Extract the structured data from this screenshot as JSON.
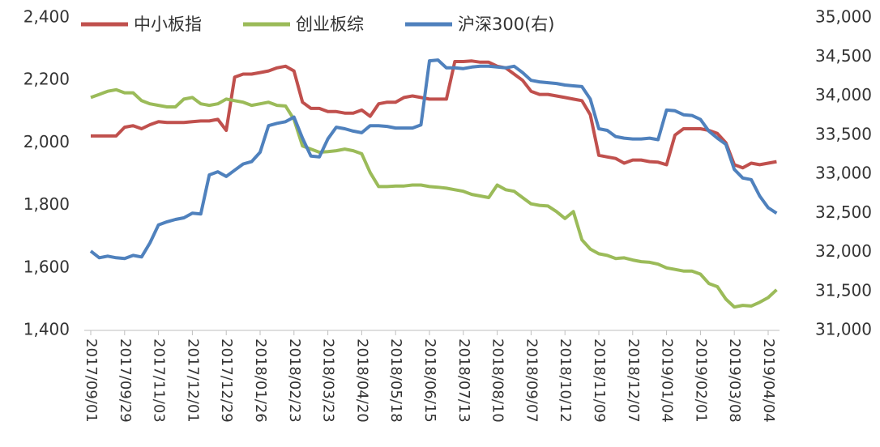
{
  "chart_data": {
    "type": "line",
    "categories": [
      "2017/09/01",
      null,
      null,
      null,
      "2017/09/29",
      null,
      null,
      null,
      "2017/11/03",
      null,
      null,
      null,
      "2017/12/01",
      null,
      null,
      null,
      "2017/12/29",
      null,
      null,
      null,
      "2018/01/26",
      null,
      null,
      null,
      "2018/02/23",
      null,
      null,
      null,
      "2018/03/23",
      null,
      null,
      null,
      "2018/04/20",
      null,
      null,
      null,
      "2018/05/18",
      null,
      null,
      null,
      "2018/06/15",
      null,
      null,
      null,
      "2018/07/13",
      null,
      null,
      null,
      "2018/08/10",
      null,
      null,
      null,
      "2018/09/07",
      null,
      null,
      null,
      "2018/10/12",
      null,
      null,
      null,
      "2018/11/09",
      null,
      null,
      null,
      "2018/12/07",
      null,
      null,
      null,
      "2019/01/04",
      null,
      null,
      null,
      "2019/02/01",
      null,
      null,
      null,
      "2019/03/08",
      null,
      null,
      null,
      "2019/04/04",
      null
    ],
    "series": [
      {
        "name": "中小板指",
        "color": "#c0504d",
        "values": [
          2022,
          2022,
          2022,
          2022,
          2050,
          2055,
          2045,
          2058,
          2068,
          2065,
          2065,
          2065,
          2068,
          2070,
          2070,
          2075,
          2040,
          2210,
          2220,
          2220,
          2225,
          2230,
          2240,
          2245,
          2230,
          2130,
          2110,
          2110,
          2100,
          2100,
          2095,
          2095,
          2105,
          2085,
          2125,
          2130,
          2130,
          2145,
          2150,
          2145,
          2140,
          2140,
          2140,
          2260,
          2260,
          2262,
          2258,
          2258,
          2245,
          2240,
          2220,
          2200,
          2165,
          2155,
          2155,
          2150,
          2145,
          2140,
          2135,
          2090,
          1960,
          1955,
          1950,
          1935,
          1945,
          1945,
          1940,
          1938,
          1930,
          2025,
          2045,
          2045,
          2045,
          2040,
          2030,
          2000,
          1930,
          1920,
          1935,
          1930,
          1935,
          1940
        ]
      },
      {
        "name": "创业板综",
        "color": "#9bbb59",
        "values": [
          2145,
          2155,
          2165,
          2170,
          2160,
          2160,
          2135,
          2125,
          2120,
          2115,
          2115,
          2140,
          2145,
          2125,
          2120,
          2125,
          2140,
          2135,
          2130,
          2120,
          2125,
          2130,
          2120,
          2118,
          2075,
          1990,
          1980,
          1970,
          1972,
          1975,
          1980,
          1975,
          1965,
          1905,
          1860,
          1860,
          1862,
          1862,
          1865,
          1865,
          1860,
          1858,
          1855,
          1850,
          1845,
          1835,
          1830,
          1825,
          1865,
          1850,
          1845,
          1825,
          1805,
          1800,
          1798,
          1780,
          1758,
          1780,
          1690,
          1660,
          1645,
          1640,
          1630,
          1632,
          1625,
          1620,
          1618,
          1612,
          1600,
          1595,
          1590,
          1590,
          1580,
          1550,
          1540,
          1500,
          1475,
          1480,
          1478,
          1490,
          1505,
          1530
        ]
      },
      {
        "name": "沪深300(右)",
        "color": "#4f81bd",
        "axis": "y2",
        "values": [
          32015,
          31930,
          31950,
          31930,
          31920,
          31960,
          31940,
          32120,
          32350,
          32390,
          32420,
          32440,
          32500,
          32490,
          32990,
          33030,
          32970,
          33050,
          33130,
          33160,
          33280,
          33620,
          33650,
          33670,
          33730,
          33460,
          33230,
          33220,
          33450,
          33600,
          33580,
          33550,
          33530,
          33620,
          33620,
          33610,
          33590,
          33590,
          33590,
          33630,
          34450,
          34460,
          34360,
          34360,
          34350,
          34370,
          34380,
          34380,
          34370,
          34360,
          34380,
          34300,
          34200,
          34180,
          34170,
          34160,
          34140,
          34130,
          34120,
          33960,
          33580,
          33560,
          33480,
          33460,
          33450,
          33450,
          33460,
          33440,
          33820,
          33810,
          33760,
          33750,
          33700,
          33550,
          33460,
          33380,
          33060,
          32950,
          32930,
          32720,
          32570,
          32500
        ]
      }
    ],
    "ylim": [
      1400,
      2400
    ],
    "yticks": [
      {
        "value": 1400,
        "label": "1,400"
      },
      {
        "value": 1600,
        "label": "1,600"
      },
      {
        "value": 1800,
        "label": "1,800"
      },
      {
        "value": 2000,
        "label": "2,000"
      },
      {
        "value": 2200,
        "label": "2,200"
      },
      {
        "value": 2400,
        "label": "2,400"
      }
    ],
    "y2lim": [
      31000,
      35000
    ],
    "y2ticks": [
      {
        "value": 31000,
        "label": "31,000"
      },
      {
        "value": 31500,
        "label": "31,500"
      },
      {
        "value": 32000,
        "label": "32,000"
      },
      {
        "value": 32500,
        "label": "32,500"
      },
      {
        "value": 33000,
        "label": "33,000"
      },
      {
        "value": 33500,
        "label": "33,500"
      },
      {
        "value": 34000,
        "label": "34,000"
      },
      {
        "value": 34500,
        "label": "34,500"
      },
      {
        "value": 35000,
        "label": "35,000"
      }
    ],
    "legend": "top"
  }
}
